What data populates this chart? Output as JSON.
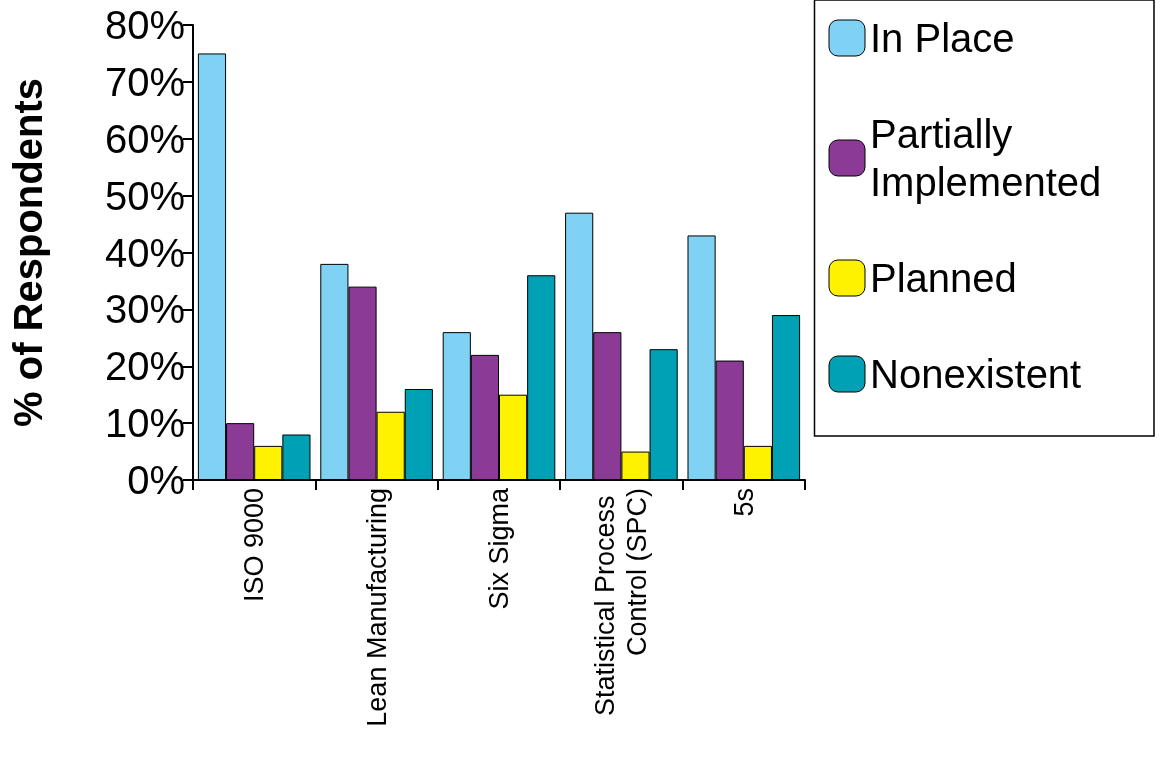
{
  "chart_data": {
    "type": "bar",
    "ylabel": "% of Respondents",
    "categories": [
      "ISO 9000",
      "Lean Manufacturing",
      "Six Sigma",
      "Statistical Process Control (SPC)",
      "5s"
    ],
    "series": [
      {
        "name": "In Place",
        "color": "#7fd2f4",
        "values": [
          75,
          38,
          26,
          47,
          43
        ]
      },
      {
        "name": "Partially Implemented",
        "color": "#8b3a96",
        "values": [
          10,
          34,
          22,
          26,
          21
        ]
      },
      {
        "name": "Planned",
        "color": "#fff200",
        "values": [
          6,
          12,
          15,
          5,
          6
        ]
      },
      {
        "name": "Nonexistent",
        "color": "#00a1b4",
        "values": [
          8,
          16,
          36,
          23,
          29
        ]
      }
    ],
    "ylim": [
      0,
      80
    ],
    "yticks": [
      {
        "value": 0,
        "label": "0%"
      },
      {
        "value": 10,
        "label": "10%"
      },
      {
        "value": 20,
        "label": "20%"
      },
      {
        "value": 30,
        "label": "30%"
      },
      {
        "value": 40,
        "label": "40%"
      },
      {
        "value": 50,
        "label": "50%"
      },
      {
        "value": 60,
        "label": "60%"
      },
      {
        "value": 70,
        "label": "70%"
      },
      {
        "value": 80,
        "label": "80%"
      }
    ],
    "grid": false,
    "legend": "right"
  }
}
